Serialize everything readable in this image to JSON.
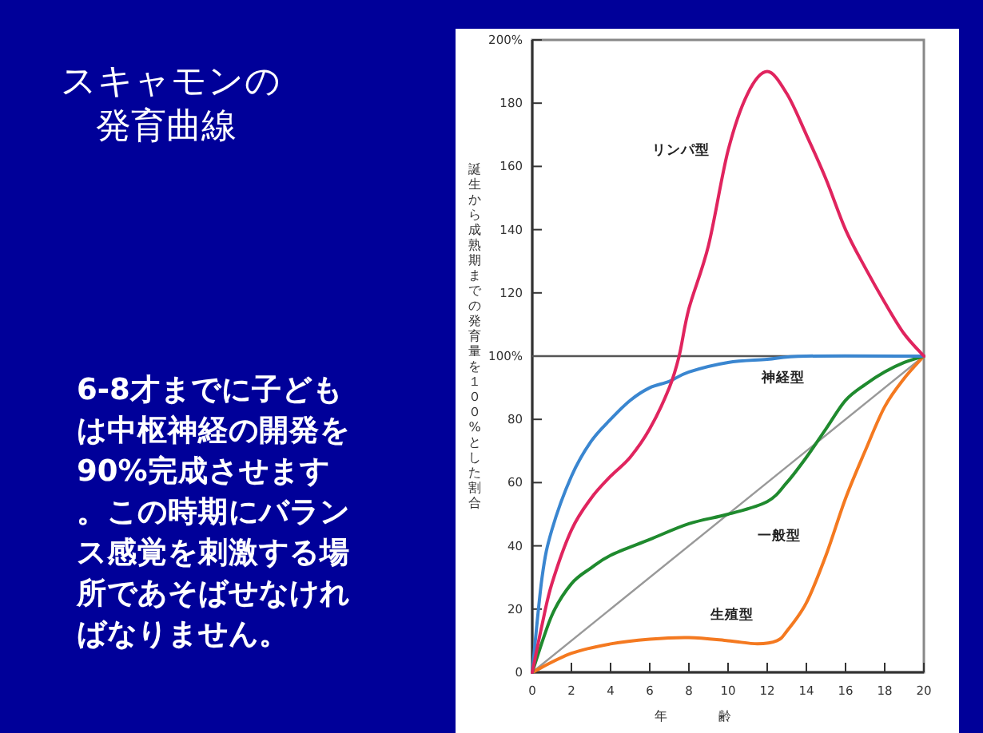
{
  "chart_data": {
    "type": "line",
    "title": "スキャモンの",
    "subtitle": "発育曲線",
    "annotations": [
      "6-8才までに子どもは中枢神経の開発を90%完成させます。この時期にバランス感覚を刺激する場所であそばせなければなりません。"
    ],
    "xlabel": "年　　　　齢",
    "ylabel": "誕生から成熟期までの発育量を１００%とした割合",
    "xlim": [
      0,
      20
    ],
    "xticks": [
      0,
      2,
      4,
      6,
      8,
      10,
      12,
      14,
      16,
      18,
      20
    ],
    "ylim": [
      0,
      200
    ],
    "yticks": [
      0,
      20,
      40,
      60,
      80,
      {
        "value": 100,
        "label": "100%"
      },
      120,
      140,
      160,
      180,
      {
        "value": 200,
        "label": "200%"
      }
    ],
    "grid": false,
    "marker": "none",
    "line_style": "solid",
    "ref_lines": [
      {
        "axis": "y",
        "value": 100,
        "color": "#555555"
      }
    ],
    "series": [
      {
        "name": "リンパ型",
        "color": "#e0245e",
        "x": [
          0,
          0.5,
          1,
          2,
          3,
          4,
          5,
          6,
          7,
          7.5,
          8,
          9,
          10,
          11,
          12,
          13,
          14,
          15,
          16,
          17,
          18,
          19,
          20
        ],
        "values": [
          0,
          15,
          28,
          45,
          55,
          62,
          68,
          77,
          90,
          100,
          115,
          135,
          165,
          183,
          190,
          183,
          170,
          156,
          140,
          128,
          117,
          107,
          100
        ]
      },
      {
        "name": "神経型",
        "color": "#3a86d0",
        "x": [
          0,
          0.5,
          1,
          2,
          3,
          4,
          5,
          6,
          7,
          8,
          10,
          12,
          14,
          20
        ],
        "values": [
          0,
          30,
          45,
          62,
          73,
          80,
          86,
          90,
          92,
          95,
          98,
          99,
          100,
          100
        ]
      },
      {
        "name": "一般型",
        "color": "#1f8a2e",
        "x": [
          0,
          1,
          2,
          3,
          4,
          6,
          8,
          10,
          12,
          13,
          14,
          15,
          16,
          17,
          18,
          19,
          20
        ],
        "values": [
          0,
          18,
          28,
          33,
          37,
          42,
          47,
          50,
          54,
          60,
          68,
          77,
          86,
          91,
          95,
          98,
          100
        ]
      },
      {
        "name": "生殖型",
        "color": "#f47920",
        "x": [
          0,
          2,
          4,
          6,
          8,
          10,
          11.5,
          12.5,
          13,
          14,
          15,
          16,
          17,
          18,
          19,
          20
        ],
        "values": [
          0,
          6,
          9,
          10.5,
          11,
          10,
          9,
          10,
          13,
          22,
          37,
          55,
          70,
          84,
          93,
          100
        ]
      },
      {
        "color": "#999999",
        "x": [
          0,
          20
        ],
        "values": [
          0,
          100
        ]
      }
    ]
  }
}
